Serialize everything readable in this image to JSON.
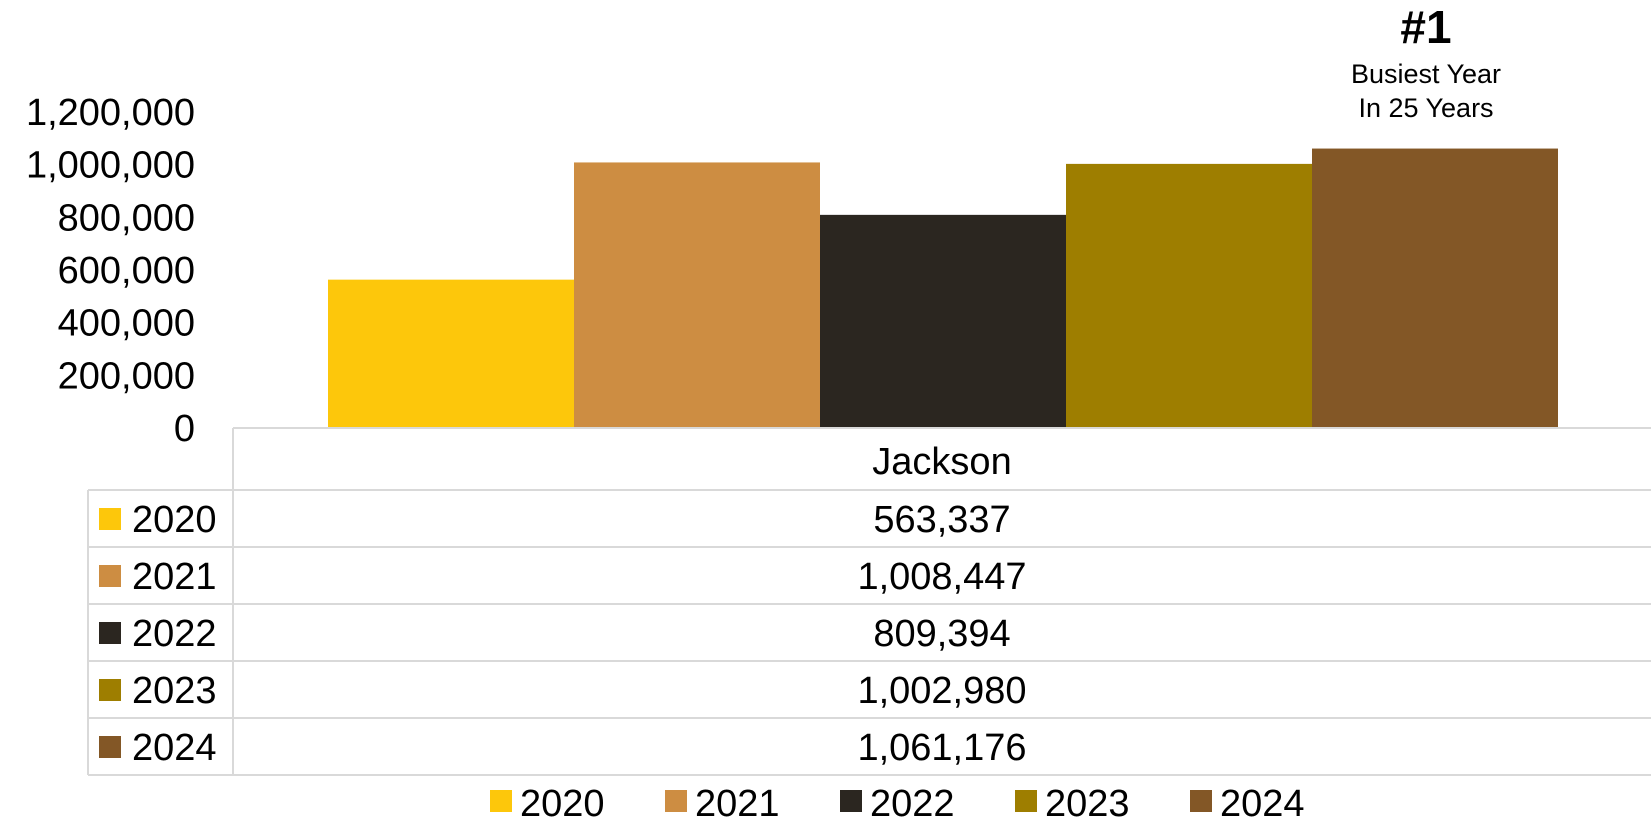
{
  "chart_data": {
    "type": "bar",
    "categories": [
      "Jackson"
    ],
    "series": [
      {
        "name": "2020",
        "color": "#FDC70B",
        "values": [
          563337
        ],
        "label": "563,337"
      },
      {
        "name": "2021",
        "color": "#CD8D42",
        "values": [
          1008447
        ],
        "label": "1,008,447"
      },
      {
        "name": "2022",
        "color": "#2B2620",
        "values": [
          809394
        ],
        "label": "809,394"
      },
      {
        "name": "2023",
        "color": "#9E7E00",
        "values": [
          1002980
        ],
        "label": "1,002,980"
      },
      {
        "name": "2024",
        "color": "#835726",
        "values": [
          1061176
        ],
        "label": "1,061,176"
      }
    ],
    "ylim": [
      0,
      1200000
    ],
    "yticks": [
      0,
      200000,
      400000,
      600000,
      800000,
      1000000,
      1200000
    ],
    "ytick_labels": [
      "0",
      "200,000",
      "400,000",
      "600,000",
      "800,000",
      "1,000,000",
      "1,200,000"
    ],
    "data_table": true,
    "legend": "bottom",
    "grid": false,
    "annotation": {
      "rank": "#1",
      "line1": "Busiest Year",
      "line2": "In 25 Years",
      "series": "2024"
    }
  }
}
